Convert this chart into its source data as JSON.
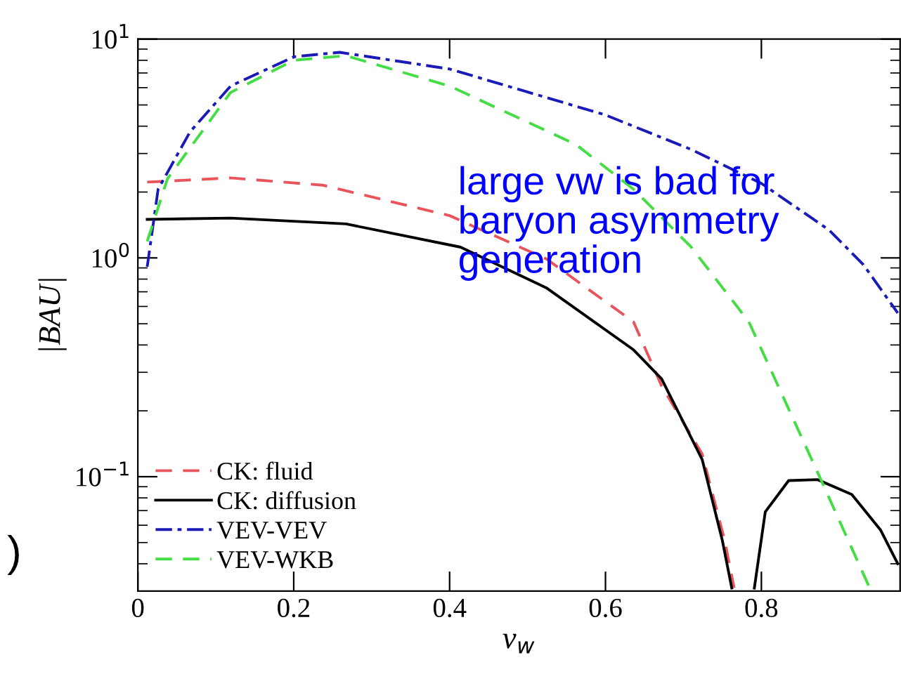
{
  "chart_data": {
    "type": "line",
    "xlabel": "v$_{w}$",
    "ylabel": "|BAU|",
    "log": "y",
    "xlim": [
      0,
      0.978
    ],
    "ylim": [
      0.03,
      10
    ],
    "xticks": [
      0,
      0.2,
      0.4,
      0.6,
      0.8
    ],
    "yticks": [
      {
        "value": 0.1,
        "label": "10$^{−1}$"
      },
      {
        "value": 1,
        "label": "10$^{0}$"
      },
      {
        "value": 10,
        "label": "10$^{1}$"
      }
    ],
    "grid": false,
    "legend": "bottom left",
    "annotations": [
      "large vw is bad for\nbaryon asymmetry\ngeneration",
      ")"
    ],
    "series": [
      {
        "name": "CK: fluid",
        "color": "#e8545a",
        "line_style": "dashed",
        "x": [
          0.012,
          0.119,
          0.237,
          0.4,
          0.524,
          0.636,
          0.672,
          0.724,
          0.753,
          0.765
        ],
        "values": [
          2.22,
          2.32,
          2.15,
          1.56,
          0.99,
          0.51,
          0.26,
          0.127,
          0.051,
          0.031
        ]
      },
      {
        "name": "CK: diffusion",
        "color": "#000000",
        "line_style": "solid",
        "x": [
          0.012,
          0.119,
          0.267,
          0.414,
          0.524,
          0.636,
          0.672,
          0.724,
          0.75,
          0.762,
          0.776,
          0.791,
          0.805,
          0.835,
          0.872,
          0.916,
          0.953,
          0.975
        ],
        "values": [
          1.5,
          1.52,
          1.43,
          1.12,
          0.73,
          0.38,
          0.28,
          0.12,
          0.051,
          0.031,
          null,
          0.031,
          0.069,
          0.096,
          0.097,
          0.083,
          0.057,
          0.04
        ]
      },
      {
        "name": "VEV-VEV",
        "color": "#1a1ab8",
        "line_style": "dashdot",
        "x": [
          0.012,
          0.026,
          0.067,
          0.119,
          0.2,
          0.259,
          0.4,
          0.6,
          0.71,
          0.8,
          0.887,
          0.931,
          0.975
        ],
        "values": [
          0.91,
          2.06,
          3.77,
          6.1,
          8.3,
          8.7,
          7.3,
          4.5,
          3.13,
          2.19,
          1.34,
          0.93,
          0.56
        ]
      },
      {
        "name": "VEV-WKB",
        "color": "#44dd44",
        "line_style": "dashed",
        "x": [
          0.012,
          0.038,
          0.119,
          0.2,
          0.267,
          0.4,
          0.562,
          0.636,
          0.71,
          0.784,
          0.872,
          0.939
        ],
        "values": [
          1.19,
          2.3,
          5.7,
          8.0,
          8.4,
          6.1,
          3.3,
          2.06,
          1.12,
          0.51,
          0.105,
          0.031
        ]
      }
    ]
  }
}
